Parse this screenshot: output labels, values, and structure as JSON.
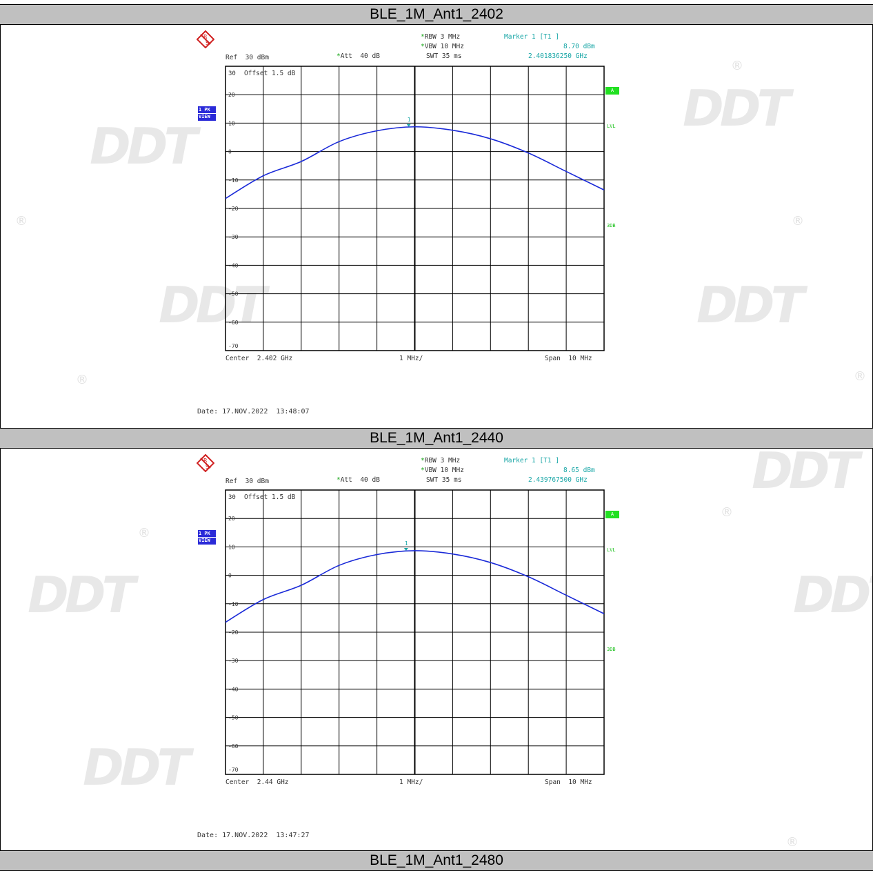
{
  "panels": [
    {
      "caption": "BLE_1M_Ant1_2402",
      "rbw": "RBW 3 MHz",
      "vbw": "VBW 10 MHz",
      "swt": "SWT 35 ms",
      "marker_title": "Marker 1 [T1 ]",
      "marker_level": "8.70 dBm",
      "marker_freq": "2.401836250 GHz",
      "ref": "Ref  30 dBm",
      "att": "Att  40 dB",
      "offset": "Offset  1.5 dB",
      "center": "Center  2.402 GHz",
      "div": "1 MHz/",
      "span": "Span  10 MHz",
      "date": "Date: 17.NOV.2022  13:48:07",
      "side_1pk": "1 PK",
      "side_view": "VIEW",
      "badge_a": "A",
      "lvl": "LVL",
      "db3": "3DB",
      "marker_label": "1"
    },
    {
      "caption": "BLE_1M_Ant1_2440",
      "rbw": "RBW 3 MHz",
      "vbw": "VBW 10 MHz",
      "swt": "SWT 35 ms",
      "marker_title": "Marker 1 [T1 ]",
      "marker_level": "8.65 dBm",
      "marker_freq": "2.439767500 GHz",
      "ref": "Ref  30 dBm",
      "att": "Att  40 dB",
      "offset": "Offset  1.5 dB",
      "center": "Center  2.44 GHz",
      "div": "1 MHz/",
      "span": "Span  10 MHz",
      "date": "Date: 17.NOV.2022  13:47:27",
      "side_1pk": "1 PK",
      "side_view": "VIEW",
      "badge_a": "A",
      "lvl": "LVL",
      "db3": "3DB",
      "marker_label": "1"
    }
  ],
  "bottom_caption": "BLE_1M_Ant1_2480",
  "watermark": "DDT",
  "colors": {
    "trace": "#1a2ad8",
    "marker": "#18a6a6",
    "grid": "#000000",
    "caption_bg": "#c0c0c0"
  },
  "chart_data": [
    {
      "type": "line",
      "x_unit": "MHz offset from center",
      "ylim": [
        -70,
        30
      ],
      "yticks": [
        30,
        20,
        10,
        0,
        -10,
        -20,
        -30,
        -40,
        -50,
        -60,
        -70
      ],
      "x": [
        -5,
        -4,
        -3,
        -2,
        -1,
        0,
        1,
        2,
        3,
        4,
        5
      ],
      "series": [
        {
          "values": [
            -16.5,
            -8.5,
            -3.5,
            3.5,
            7.3,
            8.7,
            7.5,
            4.5,
            -0.5,
            -7.0,
            -13.5
          ]
        }
      ],
      "marker": {
        "x": -0.16,
        "y": 8.7
      }
    },
    {
      "type": "line",
      "x_unit": "MHz offset from center",
      "ylim": [
        -70,
        30
      ],
      "yticks": [
        30,
        20,
        10,
        0,
        -10,
        -20,
        -30,
        -40,
        -50,
        -60,
        -70
      ],
      "x": [
        -5,
        -4,
        -3,
        -2,
        -1,
        0,
        1,
        2,
        3,
        4,
        5
      ],
      "series": [
        {
          "values": [
            -16.5,
            -8.5,
            -3.5,
            3.5,
            7.3,
            8.65,
            7.5,
            4.5,
            -0.5,
            -7.0,
            -13.5
          ]
        }
      ],
      "marker": {
        "x": -0.23,
        "y": 8.65
      }
    }
  ]
}
